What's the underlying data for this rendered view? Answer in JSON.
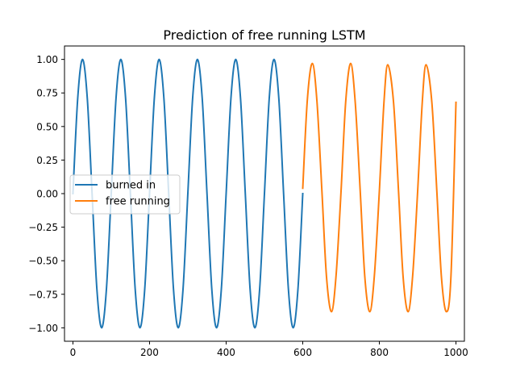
{
  "chart_data": {
    "type": "line",
    "title": "Prediction of free running LSTM",
    "xlabel": "",
    "ylabel": "",
    "xlim": [
      -22,
      1022
    ],
    "ylim": [
      -1.1,
      1.1
    ],
    "xticks": [
      0,
      200,
      400,
      600,
      800,
      1000
    ],
    "xtick_labels": [
      "0",
      "200",
      "400",
      "600",
      "800",
      "1000"
    ],
    "yticks": [
      -1.0,
      -0.75,
      -0.5,
      -0.25,
      0.0,
      0.25,
      0.5,
      0.75,
      1.0
    ],
    "ytick_labels": [
      "−1.00",
      "−0.75",
      "−0.50",
      "−0.25",
      "0.00",
      "0.25",
      "0.50",
      "0.75",
      "1.00"
    ],
    "grid": false,
    "legend_position": "center-left",
    "series": [
      {
        "name": "burned in",
        "color": "#1f77b4",
        "x": [
          0,
          12.5,
          25,
          37.5,
          50,
          62.5,
          75,
          87.5,
          100,
          112.5,
          125,
          137.5,
          150,
          162.5,
          175,
          187.5,
          200,
          212.5,
          225,
          237.5,
          250,
          262.5,
          275,
          287.5,
          300,
          312.5,
          325,
          337.5,
          350,
          362.5,
          375,
          387.5,
          400,
          412.5,
          425,
          437.5,
          450,
          462.5,
          475,
          487.5,
          500,
          512.5,
          525,
          537.5,
          550,
          562.5,
          575,
          587.5,
          600
        ],
        "y": [
          0.0,
          0.71,
          1.0,
          0.71,
          0.0,
          -0.71,
          -1.0,
          -0.71,
          0.0,
          0.71,
          1.0,
          0.71,
          0.0,
          -0.71,
          -1.0,
          -0.71,
          0.0,
          0.71,
          1.0,
          0.71,
          0.0,
          -0.71,
          -1.0,
          -0.71,
          0.0,
          0.71,
          1.0,
          0.71,
          0.0,
          -0.71,
          -1.0,
          -0.71,
          0.0,
          0.71,
          1.0,
          0.71,
          0.0,
          -0.71,
          -1.0,
          -0.71,
          0.0,
          0.71,
          1.0,
          0.71,
          0.0,
          -0.71,
          -1.0,
          -0.71,
          0.0
        ]
      },
      {
        "name": "free running",
        "color": "#ff7f0e",
        "x": [
          600,
          612,
          625,
          637,
          650,
          662,
          675,
          687,
          700,
          712,
          725,
          737,
          750,
          762,
          775,
          787,
          800,
          812,
          822,
          837,
          850,
          862,
          875,
          887,
          900,
          912,
          922,
          937,
          950,
          962,
          975,
          987,
          1000
        ],
        "y": [
          0.04,
          0.7,
          0.97,
          0.69,
          0.02,
          -0.62,
          -0.88,
          -0.61,
          0.02,
          0.68,
          0.97,
          0.68,
          0.02,
          -0.62,
          -0.88,
          -0.61,
          0.02,
          0.68,
          0.96,
          0.68,
          0.02,
          -0.62,
          -0.88,
          -0.61,
          0.02,
          0.68,
          0.96,
          0.68,
          0.02,
          -0.62,
          -0.88,
          -0.61,
          0.68
        ]
      }
    ]
  }
}
